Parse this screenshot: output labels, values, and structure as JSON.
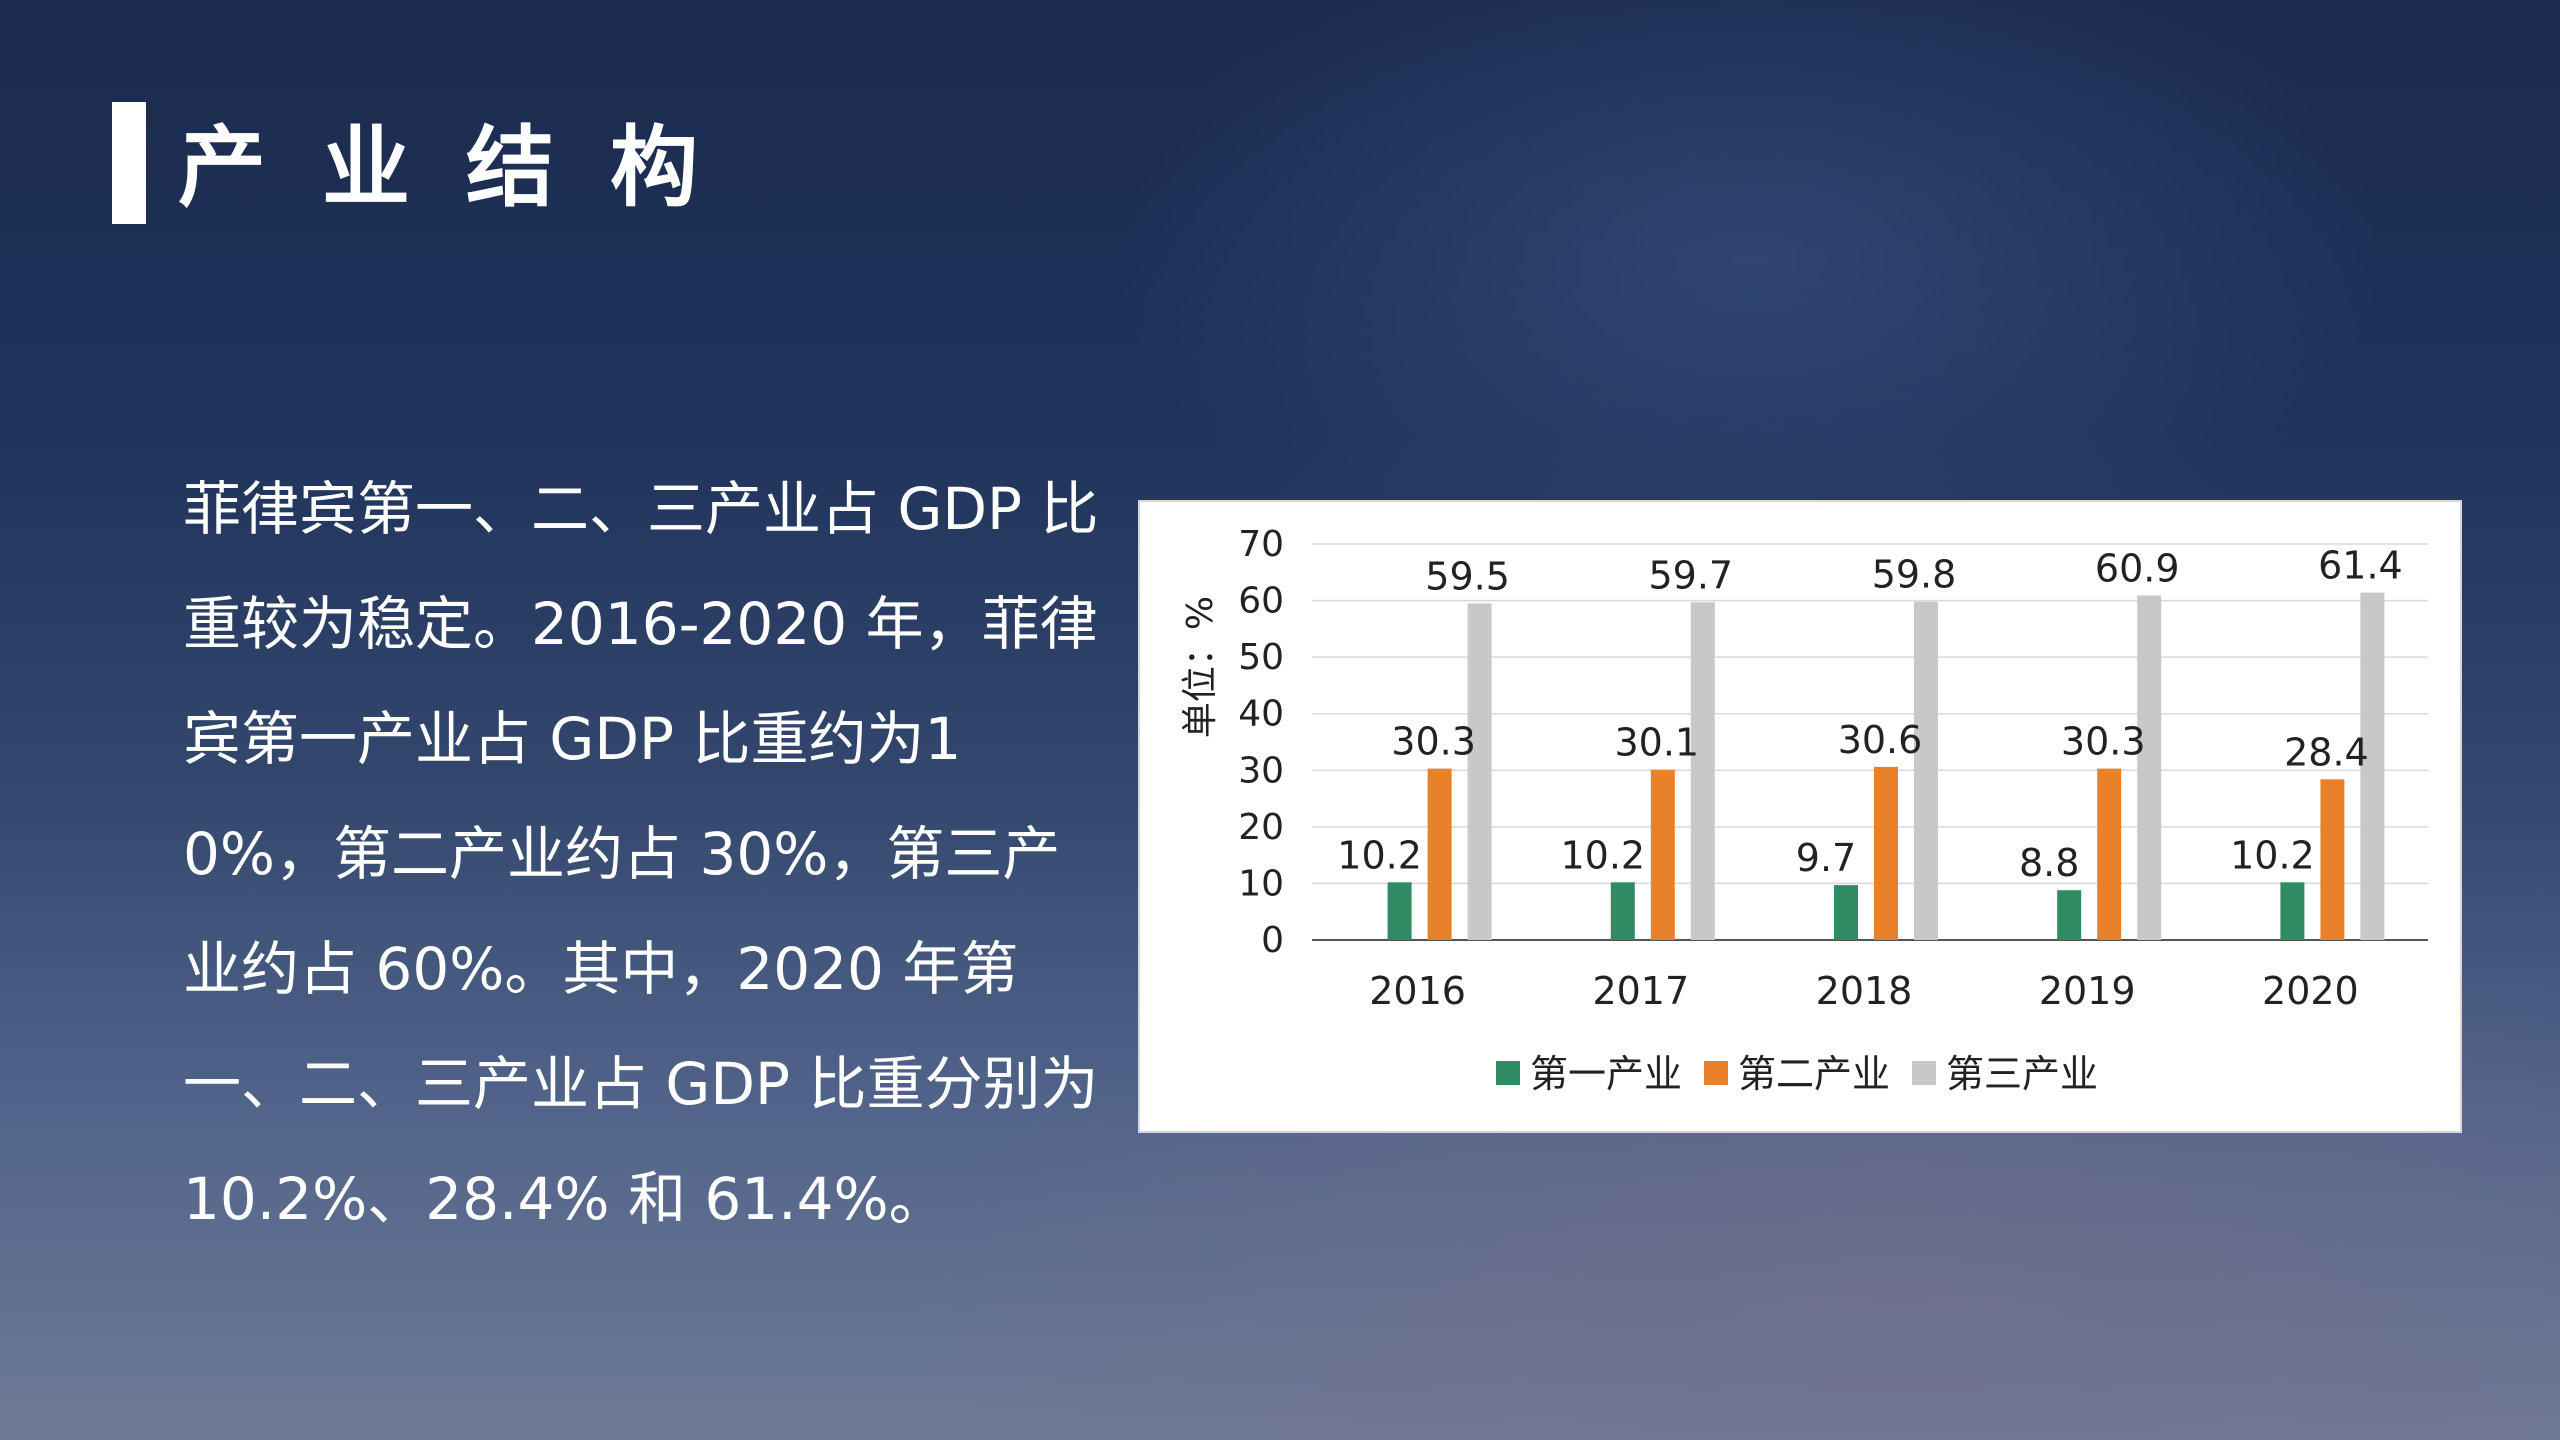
{
  "slide": {
    "title": "产业结构",
    "body_text": "菲律宾第一、二、三产业占 GDP 比重较为稳定。2016-2020 年，菲律宾第一产业占 GDP 比重约为10%，第二产业约占 30%，第三产业约占 60%。其中，2020 年第一、二、三产业占 GDP 比重分别为 10.2%、28.4% 和 61.4%。"
  },
  "chart_data": {
    "type": "bar",
    "title": "",
    "xlabel": "",
    "ylabel": "单位：%",
    "categories": [
      "2016",
      "2017",
      "2018",
      "2019",
      "2020"
    ],
    "series": [
      {
        "name": "第一产业",
        "color": "#2e8b62",
        "values": [
          10.2,
          10.2,
          9.7,
          8.8,
          10.2
        ]
      },
      {
        "name": "第二产业",
        "color": "#e8822a",
        "values": [
          30.3,
          30.1,
          30.6,
          30.3,
          28.4
        ]
      },
      {
        "name": "第三产业",
        "color": "#c8c8c8",
        "values": [
          59.5,
          59.7,
          59.8,
          60.9,
          61.4
        ]
      }
    ],
    "ylim": [
      0,
      70
    ],
    "yticks": [
      0,
      10,
      20,
      30,
      40,
      50,
      60,
      70
    ],
    "grid": true,
    "legend_position": "bottom"
  }
}
